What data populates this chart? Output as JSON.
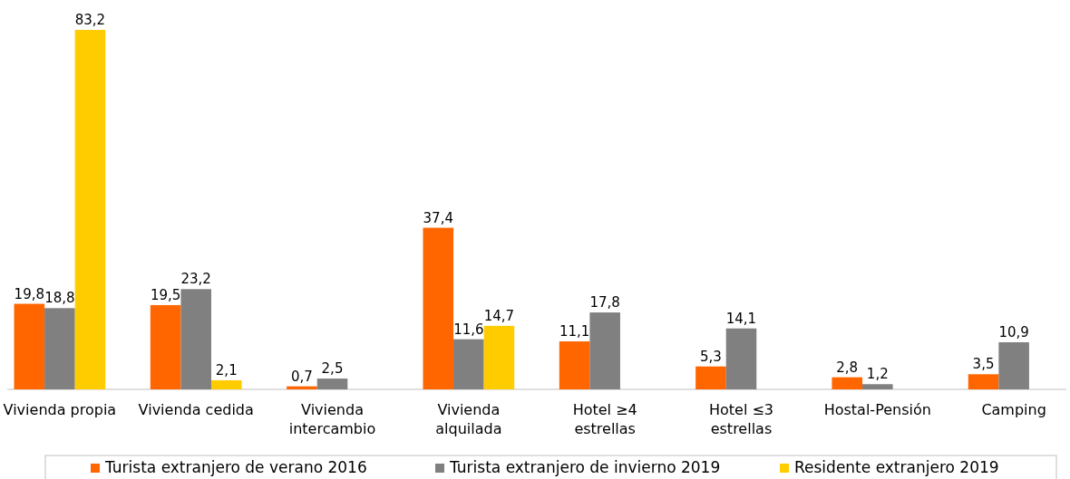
{
  "chart_data": {
    "type": "bar",
    "categories": [
      "Vivienda propia",
      "Vivienda cedida",
      "Vivienda\nintercambio",
      "Vivienda\nalquilada",
      "Hotel ≥4\nestrellas",
      "Hotel ≤3\nestrellas",
      "Hostal-Pensión",
      "Camping"
    ],
    "series": [
      {
        "name": "Turista extranjero de verano 2016",
        "color": "#ff6600",
        "values": [
          19.8,
          19.5,
          0.7,
          37.4,
          11.1,
          5.3,
          2.8,
          3.5
        ],
        "value_labels": [
          "19,8",
          "19,5",
          "0,7",
          "37,4",
          "11,1",
          "5,3",
          "2,8",
          "3,5"
        ]
      },
      {
        "name": "Turista extranjero de invierno 2019",
        "color": "#808080",
        "values": [
          18.8,
          23.2,
          2.5,
          11.6,
          17.8,
          14.1,
          1.2,
          10.9
        ],
        "value_labels": [
          "18,8",
          "23,2",
          "2,5",
          "11,6",
          "17,8",
          "14,1",
          "1,2",
          "10,9"
        ]
      },
      {
        "name": "Residente extranjero 2019",
        "color": "#ffcc00",
        "values": [
          83.2,
          2.1,
          null,
          14.7,
          null,
          null,
          null,
          null
        ],
        "value_labels": [
          "83,2",
          "2,1",
          null,
          "14,7",
          null,
          null,
          null,
          null
        ]
      }
    ],
    "legend": "bottom"
  }
}
